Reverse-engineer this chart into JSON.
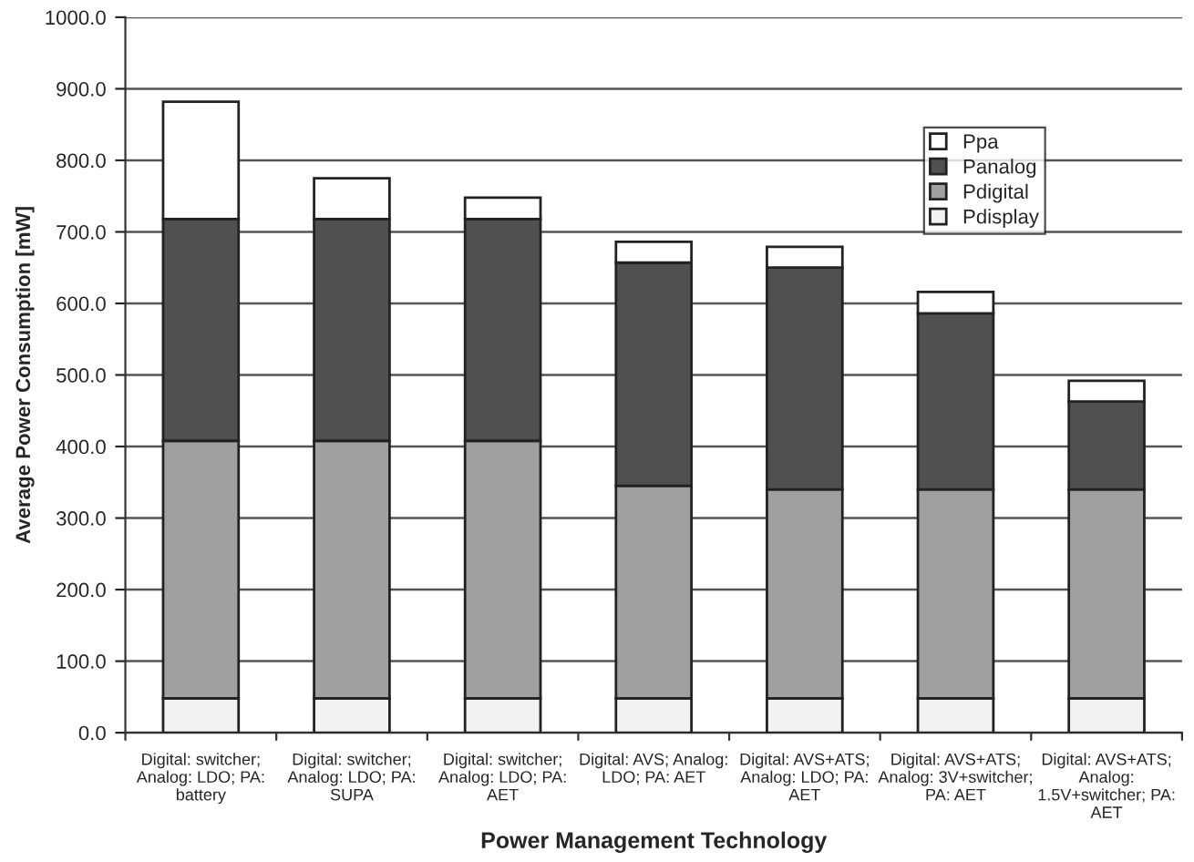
{
  "chart_data": {
    "type": "bar",
    "stacked": true,
    "xlabel": "Power Management Technology",
    "ylabel": "Average Power Consumption [mW]",
    "categories": [
      "Digital: switcher;\nAnalog: LDO; PA:\nbattery",
      "Digital: switcher;\nAnalog: LDO; PA:\nSUPA",
      "Digital: switcher;\nAnalog: LDO; PA:\nAET",
      "Digital: AVS; Analog:\nLDO; PA: AET",
      "Digital: AVS+ATS;\nAnalog: LDO; PA:\nAET",
      "Digital: AVS+ATS;\nAnalog: 3V+switcher;\nPA: AET",
      "Digital: AVS+ATS;\nAnalog:\n1.5V+switcher; PA:\nAET"
    ],
    "series": [
      {
        "name": "Pdisplay",
        "color": "#f2f2f2",
        "values": [
          48,
          48,
          48,
          48,
          48,
          48,
          48
        ]
      },
      {
        "name": "Pdigital",
        "color": "#a0a0a0",
        "values": [
          360,
          360,
          360,
          297,
          292,
          292,
          292
        ]
      },
      {
        "name": "Panalog",
        "color": "#505050",
        "values": [
          310,
          310,
          310,
          312,
          310,
          246,
          123
        ]
      },
      {
        "name": "Ppa",
        "color": "#ffffff",
        "values": [
          164,
          57,
          30,
          29,
          29,
          30,
          29
        ]
      }
    ],
    "ylim": [
      0,
      1000
    ],
    "yticks": [
      {
        "value": 0,
        "label": "0.0"
      },
      {
        "value": 100,
        "label": "100.0"
      },
      {
        "value": 200,
        "label": "200.0"
      },
      {
        "value": 300,
        "label": "300.0"
      },
      {
        "value": 400,
        "label": "400.0"
      },
      {
        "value": 500,
        "label": "500.0"
      },
      {
        "value": 600,
        "label": "600.0"
      },
      {
        "value": 700,
        "label": "700.0"
      },
      {
        "value": 800,
        "label": "800.0"
      },
      {
        "value": 900,
        "label": "900.0"
      },
      {
        "value": 1000,
        "label": "1000.0"
      }
    ],
    "grid": "y",
    "legend": "top right"
  }
}
